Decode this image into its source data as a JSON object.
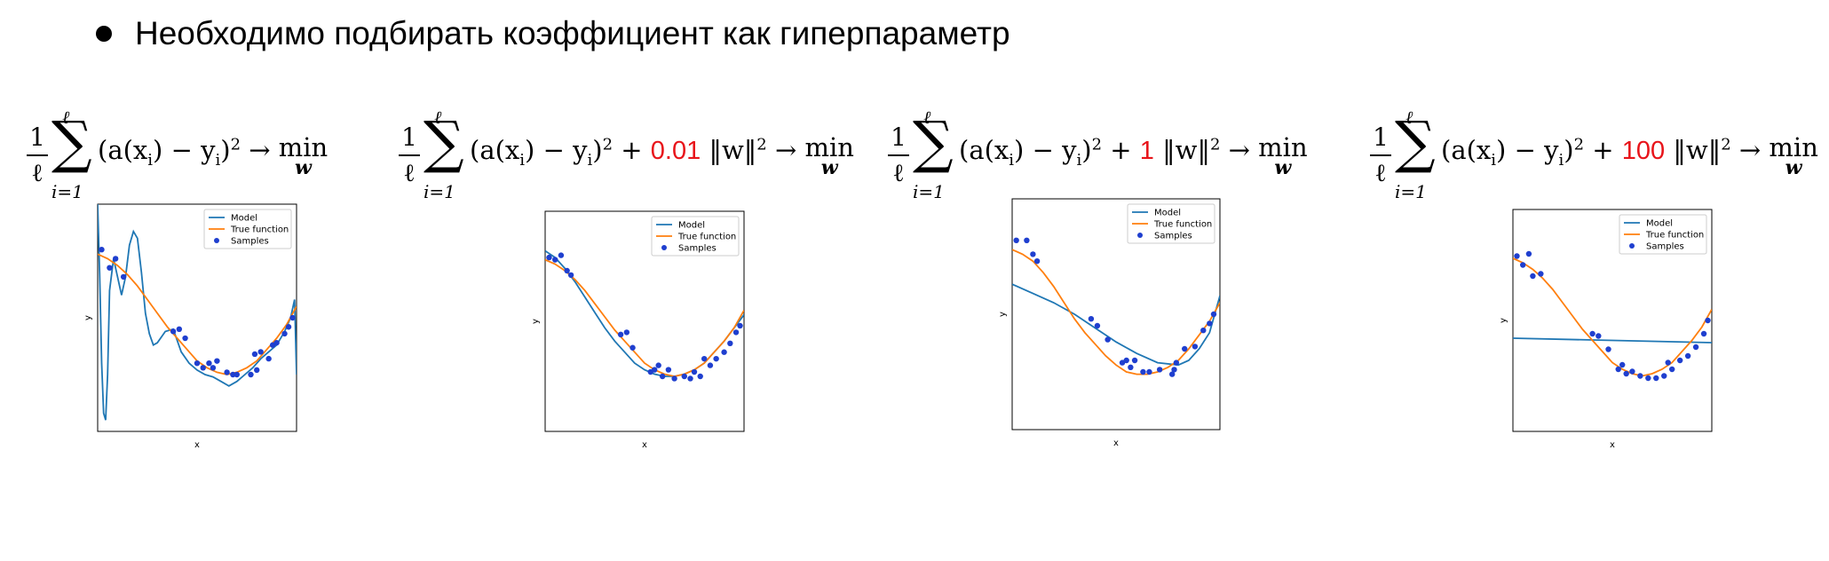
{
  "bullet": {
    "text": "Необходимо подбирать коэффициент как гиперпараметр"
  },
  "formulas": [
    {
      "frac_num": "1",
      "frac_den": "ℓ",
      "sum_top": "ℓ",
      "sum_bottom": "i=1",
      "body": "(a(x",
      "body_sub": "i",
      "body_mid": ") − y",
      "body_sub2": "i",
      "body_close": ")",
      "body_sup": "2",
      "reg_coef": "",
      "reg_norm": "",
      "arrow": " → ",
      "min": "min",
      "min_sub": "w"
    },
    {
      "frac_num": "1",
      "frac_den": "ℓ",
      "sum_top": "ℓ",
      "sum_bottom": "i=1",
      "body": "(a(x",
      "body_sub": "i",
      "body_mid": ") − y",
      "body_sub2": "i",
      "body_close": ")",
      "body_sup": "2",
      "reg_coef": "0.01",
      "reg_norm": "‖w‖",
      "arrow": " → ",
      "min": "min",
      "min_sub": "w"
    },
    {
      "frac_num": "1",
      "frac_den": "ℓ",
      "sum_top": "ℓ",
      "sum_bottom": "i=1",
      "body": "(a(x",
      "body_sub": "i",
      "body_mid": ") − y",
      "body_sub2": "i",
      "body_close": ")",
      "body_sup": "2",
      "reg_coef": "1",
      "reg_norm": "‖w‖",
      "arrow": " → ",
      "min": "min",
      "min_sub": "w"
    },
    {
      "frac_num": "1",
      "frac_den": "ℓ",
      "sum_top": "ℓ",
      "sum_bottom": "i=1",
      "body": "(a(x",
      "body_sub": "i",
      "body_mid": ") − y",
      "body_sub2": "i",
      "body_close": ")",
      "body_sup": "2",
      "reg_coef": "100",
      "reg_norm": "‖w‖",
      "arrow": " → ",
      "min": "min",
      "min_sub": "w"
    }
  ],
  "colors": {
    "model": "#1f77b4",
    "true_function": "#ff7f0e",
    "samples": "#1f3fcf",
    "highlight": "#e8141a"
  },
  "chart_data": [
    {
      "type": "line",
      "xlabel": "x",
      "ylabel": "y",
      "xlim": [
        0,
        1
      ],
      "ylim": [
        0,
        1
      ],
      "legend": [
        "Model",
        "True function",
        "Samples"
      ],
      "legend_position": "top-right",
      "series": [
        {
          "name": "Model",
          "x": [
            0,
            0.01,
            0.02,
            0.03,
            0.04,
            0.05,
            0.06,
            0.08,
            0.1,
            0.12,
            0.14,
            0.16,
            0.18,
            0.2,
            0.22,
            0.24,
            0.26,
            0.28,
            0.3,
            0.34,
            0.38,
            0.42,
            0.46,
            0.5,
            0.54,
            0.58,
            0.62,
            0.66,
            0.7,
            0.74,
            0.78,
            0.82,
            0.86,
            0.9,
            0.94,
            0.97,
            0.99,
            1.0
          ],
          "y": [
            1.0,
            0.7,
            0.3,
            0.08,
            0.05,
            0.25,
            0.62,
            0.76,
            0.68,
            0.6,
            0.68,
            0.82,
            0.88,
            0.85,
            0.7,
            0.52,
            0.43,
            0.38,
            0.39,
            0.44,
            0.45,
            0.35,
            0.3,
            0.27,
            0.25,
            0.24,
            0.22,
            0.2,
            0.22,
            0.25,
            0.28,
            0.32,
            0.35,
            0.38,
            0.44,
            0.5,
            0.58,
            0.25
          ]
        },
        {
          "name": "True function",
          "x": [
            0,
            0.05,
            0.1,
            0.15,
            0.2,
            0.25,
            0.3,
            0.35,
            0.4,
            0.45,
            0.5,
            0.55,
            0.6,
            0.65,
            0.7,
            0.75,
            0.8,
            0.85,
            0.9,
            0.95,
            1.0
          ],
          "y": [
            0.78,
            0.76,
            0.73,
            0.69,
            0.64,
            0.58,
            0.52,
            0.46,
            0.41,
            0.36,
            0.31,
            0.28,
            0.26,
            0.25,
            0.26,
            0.28,
            0.31,
            0.36,
            0.41,
            0.47,
            0.55
          ]
        },
        {
          "name": "Samples",
          "x": [
            0.02,
            0.06,
            0.09,
            0.13,
            0.38,
            0.41,
            0.44,
            0.5,
            0.53,
            0.56,
            0.58,
            0.6,
            0.65,
            0.68,
            0.7,
            0.77,
            0.79,
            0.8,
            0.82,
            0.86,
            0.88,
            0.9,
            0.94,
            0.96,
            0.98
          ],
          "y": [
            0.8,
            0.72,
            0.76,
            0.68,
            0.44,
            0.45,
            0.41,
            0.3,
            0.28,
            0.3,
            0.28,
            0.31,
            0.26,
            0.25,
            0.25,
            0.25,
            0.34,
            0.27,
            0.35,
            0.32,
            0.38,
            0.39,
            0.43,
            0.46,
            0.5
          ]
        }
      ]
    },
    {
      "type": "line",
      "xlabel": "x",
      "ylabel": "y",
      "xlim": [
        0,
        1
      ],
      "ylim": [
        0,
        1
      ],
      "legend": [
        "Model",
        "True function",
        "Samples"
      ],
      "legend_position": "top-right",
      "series": [
        {
          "name": "Model",
          "x": [
            0,
            0.05,
            0.1,
            0.15,
            0.2,
            0.25,
            0.3,
            0.35,
            0.4,
            0.45,
            0.5,
            0.55,
            0.6,
            0.65,
            0.7,
            0.75,
            0.8,
            0.85,
            0.9,
            0.95,
            1.0
          ],
          "y": [
            0.82,
            0.79,
            0.74,
            0.68,
            0.61,
            0.54,
            0.47,
            0.41,
            0.36,
            0.31,
            0.28,
            0.26,
            0.25,
            0.25,
            0.26,
            0.28,
            0.31,
            0.36,
            0.41,
            0.47,
            0.53
          ]
        },
        {
          "name": "True function",
          "x": [
            0,
            0.05,
            0.1,
            0.15,
            0.2,
            0.25,
            0.3,
            0.35,
            0.4,
            0.45,
            0.5,
            0.55,
            0.6,
            0.65,
            0.7,
            0.75,
            0.8,
            0.85,
            0.9,
            0.95,
            1.0
          ],
          "y": [
            0.78,
            0.76,
            0.73,
            0.69,
            0.64,
            0.58,
            0.52,
            0.46,
            0.41,
            0.36,
            0.31,
            0.28,
            0.26,
            0.25,
            0.26,
            0.28,
            0.31,
            0.36,
            0.41,
            0.47,
            0.55
          ]
        },
        {
          "name": "Samples",
          "x": [
            0.02,
            0.05,
            0.08,
            0.11,
            0.13,
            0.38,
            0.41,
            0.44,
            0.53,
            0.55,
            0.57,
            0.59,
            0.62,
            0.65,
            0.7,
            0.73,
            0.75,
            0.78,
            0.8,
            0.83,
            0.86,
            0.9,
            0.93,
            0.96,
            0.98
          ],
          "y": [
            0.79,
            0.78,
            0.8,
            0.73,
            0.71,
            0.44,
            0.45,
            0.38,
            0.27,
            0.28,
            0.3,
            0.25,
            0.28,
            0.24,
            0.25,
            0.24,
            0.27,
            0.25,
            0.33,
            0.3,
            0.33,
            0.36,
            0.4,
            0.45,
            0.48
          ]
        }
      ]
    },
    {
      "type": "line",
      "xlabel": "x",
      "ylabel": "y",
      "xlim": [
        0,
        1
      ],
      "ylim": [
        0,
        1
      ],
      "legend": [
        "Model",
        "True function",
        "Samples"
      ],
      "legend_position": "top-right",
      "series": [
        {
          "name": "Model",
          "x": [
            0,
            0.1,
            0.2,
            0.3,
            0.4,
            0.5,
            0.6,
            0.7,
            0.8,
            0.85,
            0.9,
            0.95,
            1.0
          ],
          "y": [
            0.63,
            0.59,
            0.55,
            0.5,
            0.44,
            0.38,
            0.33,
            0.29,
            0.28,
            0.3,
            0.35,
            0.42,
            0.58
          ]
        },
        {
          "name": "True function",
          "x": [
            0,
            0.05,
            0.1,
            0.15,
            0.2,
            0.25,
            0.3,
            0.35,
            0.4,
            0.45,
            0.5,
            0.55,
            0.6,
            0.65,
            0.7,
            0.75,
            0.8,
            0.85,
            0.9,
            0.95,
            1.0
          ],
          "y": [
            0.78,
            0.76,
            0.73,
            0.68,
            0.62,
            0.55,
            0.48,
            0.42,
            0.37,
            0.32,
            0.28,
            0.25,
            0.24,
            0.24,
            0.25,
            0.27,
            0.3,
            0.35,
            0.41,
            0.47,
            0.55
          ]
        },
        {
          "name": "Samples",
          "x": [
            0.02,
            0.07,
            0.1,
            0.12,
            0.38,
            0.41,
            0.46,
            0.53,
            0.55,
            0.57,
            0.59,
            0.63,
            0.66,
            0.71,
            0.77,
            0.78,
            0.79,
            0.83,
            0.88,
            0.92,
            0.95,
            0.97
          ],
          "y": [
            0.82,
            0.82,
            0.76,
            0.73,
            0.48,
            0.45,
            0.39,
            0.29,
            0.3,
            0.27,
            0.3,
            0.25,
            0.25,
            0.26,
            0.24,
            0.26,
            0.29,
            0.35,
            0.36,
            0.43,
            0.46,
            0.5
          ]
        }
      ]
    },
    {
      "type": "line",
      "xlabel": "x",
      "ylabel": "y",
      "xlim": [
        0,
        1
      ],
      "ylim": [
        0,
        1
      ],
      "legend": [
        "Model",
        "True function",
        "Samples"
      ],
      "legend_position": "top-right",
      "series": [
        {
          "name": "Model",
          "x": [
            0,
            1.0
          ],
          "y": [
            0.42,
            0.4
          ]
        },
        {
          "name": "True function",
          "x": [
            0,
            0.05,
            0.1,
            0.15,
            0.2,
            0.25,
            0.3,
            0.35,
            0.4,
            0.45,
            0.5,
            0.55,
            0.6,
            0.65,
            0.7,
            0.75,
            0.8,
            0.85,
            0.9,
            0.95,
            1.0
          ],
          "y": [
            0.78,
            0.76,
            0.73,
            0.69,
            0.64,
            0.58,
            0.52,
            0.46,
            0.41,
            0.36,
            0.31,
            0.28,
            0.26,
            0.25,
            0.26,
            0.28,
            0.31,
            0.36,
            0.41,
            0.47,
            0.55
          ]
        },
        {
          "name": "Samples",
          "x": [
            0.02,
            0.05,
            0.08,
            0.1,
            0.14,
            0.4,
            0.43,
            0.48,
            0.53,
            0.55,
            0.57,
            0.6,
            0.64,
            0.68,
            0.72,
            0.76,
            0.78,
            0.8,
            0.84,
            0.88,
            0.92,
            0.96,
            0.98
          ],
          "y": [
            0.79,
            0.75,
            0.8,
            0.7,
            0.71,
            0.44,
            0.43,
            0.37,
            0.28,
            0.3,
            0.26,
            0.27,
            0.25,
            0.24,
            0.24,
            0.25,
            0.31,
            0.28,
            0.32,
            0.34,
            0.38,
            0.44,
            0.5
          ]
        }
      ]
    }
  ]
}
